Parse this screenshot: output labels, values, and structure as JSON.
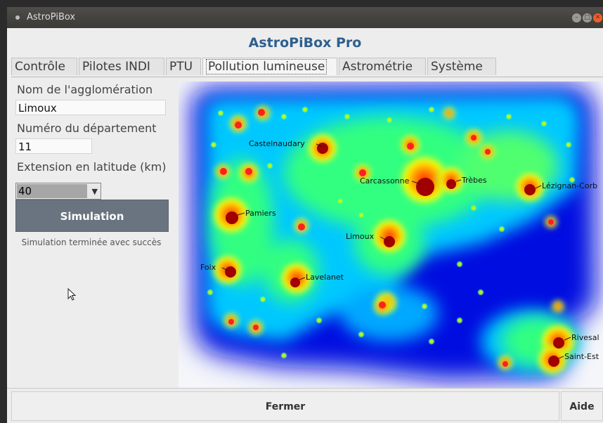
{
  "window": {
    "title": "AstroPiBox"
  },
  "app": {
    "title": "AstroPiBox Pro"
  },
  "tabs": [
    {
      "label": "Contrôle"
    },
    {
      "label": "Pilotes INDI"
    },
    {
      "label": "PTU"
    },
    {
      "label": "Pollution lumineuse"
    },
    {
      "label": "Astrométrie"
    },
    {
      "label": "Système"
    }
  ],
  "form": {
    "agglo_label": "Nom de l'agglomération",
    "agglo_value": "Limoux",
    "dept_label": "Numéro du département",
    "dept_value": "11",
    "ext_label": "Extension en latitude (km)",
    "ext_value": "40",
    "simulate_label": "Simulation",
    "status": "Simulation terminée avec succès"
  },
  "map": {
    "cities": [
      {
        "name": "Castelnaudary"
      },
      {
        "name": "Carcassonne"
      },
      {
        "name": "Trèbes"
      },
      {
        "name": "Lézignan-Corb"
      },
      {
        "name": "Pamiers"
      },
      {
        "name": "Limoux"
      },
      {
        "name": "Foix"
      },
      {
        "name": "Lavelanet"
      },
      {
        "name": "Rivesal"
      },
      {
        "name": "Saint-Est"
      }
    ]
  },
  "footer": {
    "close_label": "Fermer",
    "help_label": "Aide"
  },
  "colors": {
    "title_blue": "#2e5f8d",
    "button_gray": "#6a7480"
  }
}
